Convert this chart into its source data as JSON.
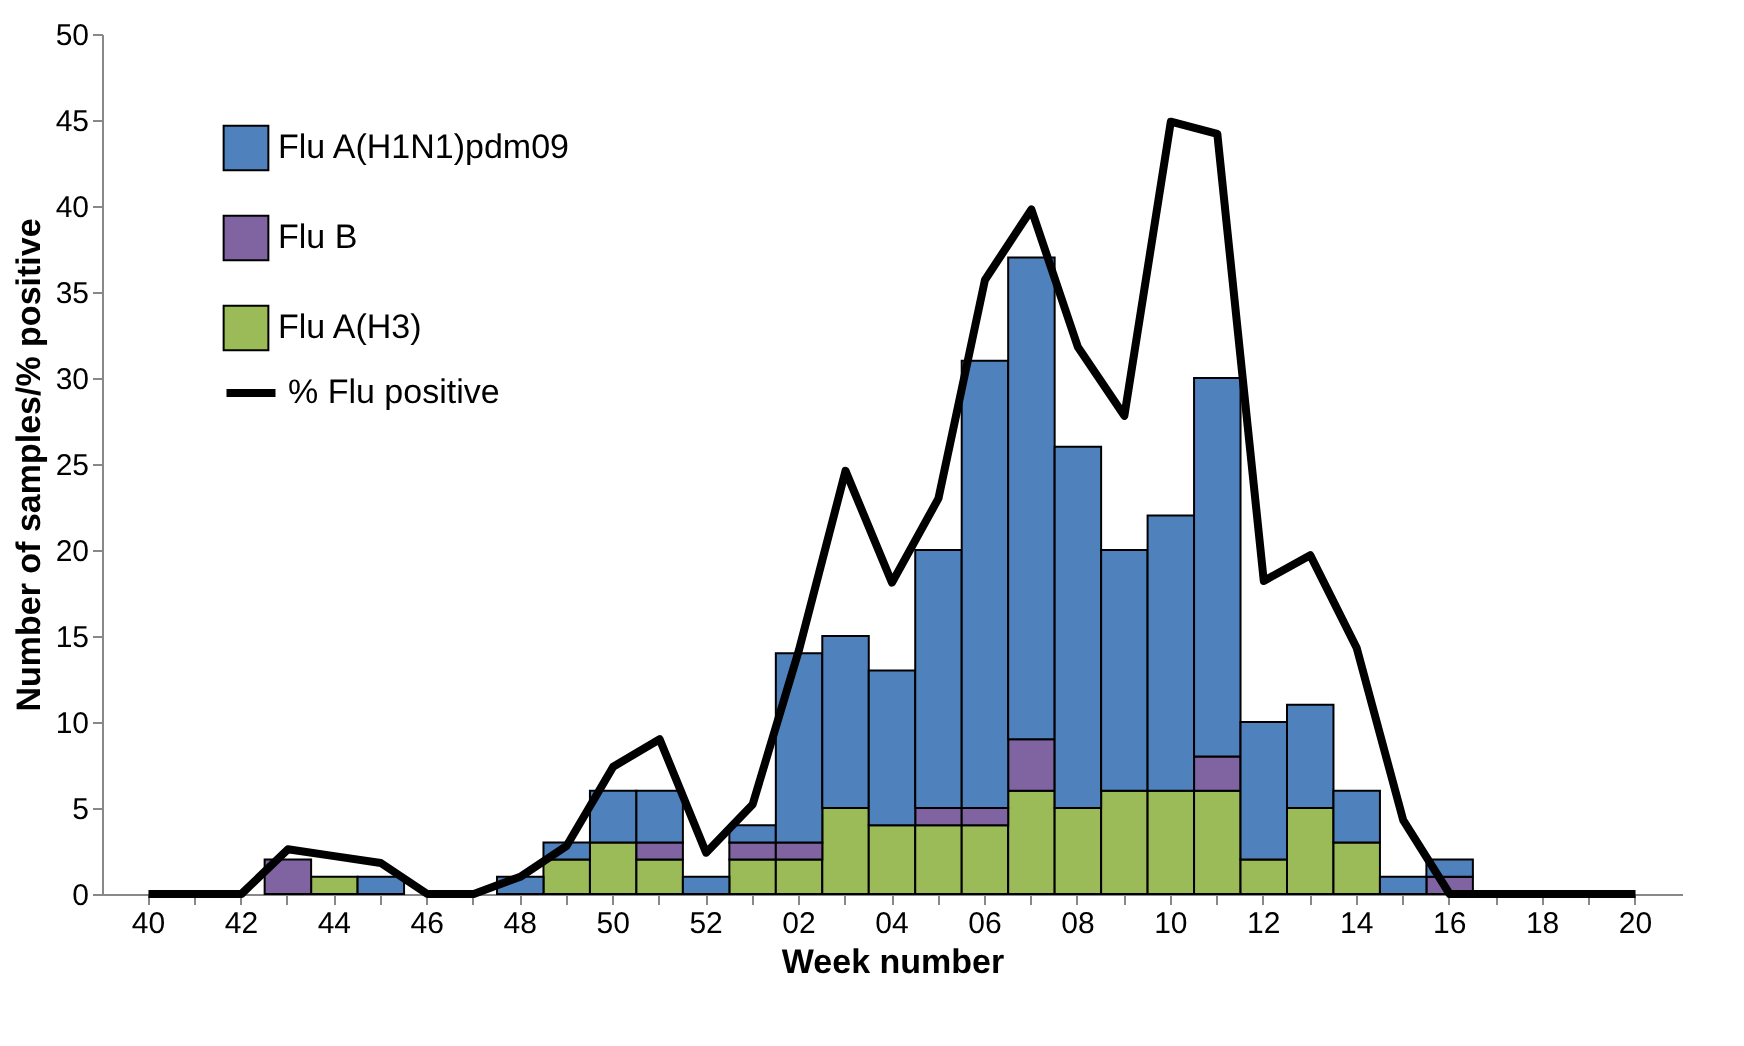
{
  "chart_data": {
    "type": "bar",
    "stacked": true,
    "xlabel": "Week number",
    "ylabel": "Number of samples/% positive",
    "categories": [
      "40",
      null,
      "42",
      null,
      "44",
      null,
      "46",
      null,
      "48",
      null,
      "50",
      null,
      "52",
      null,
      "02",
      null,
      "04",
      null,
      "06",
      null,
      "08",
      null,
      "10",
      null,
      "12",
      null,
      "14",
      null,
      "16",
      null,
      "18",
      null,
      "20"
    ],
    "series": [
      {
        "name": "Flu A(H3)",
        "color": "#9bbb59",
        "values": [
          0,
          0,
          0,
          0,
          1,
          0,
          0,
          0,
          0,
          2,
          3,
          2,
          0,
          2,
          2,
          5,
          4,
          4,
          4,
          6,
          5,
          6,
          6,
          6,
          2,
          5,
          3,
          0,
          0,
          0,
          0,
          0,
          0
        ]
      },
      {
        "name": "Flu B",
        "color": "#8064a2",
        "values": [
          0,
          0,
          0,
          2,
          0,
          0,
          0,
          0,
          0,
          0,
          0,
          1,
          0,
          1,
          1,
          0,
          0,
          1,
          1,
          3,
          0,
          0,
          0,
          2,
          0,
          0,
          0,
          0,
          1,
          0,
          0,
          0,
          0
        ]
      },
      {
        "name": "Flu A(H1N1)pdm09",
        "color": "#4f81bd",
        "values": [
          0,
          0,
          0,
          0,
          0,
          1,
          0,
          0,
          1,
          1,
          3,
          3,
          1,
          1,
          11,
          10,
          9,
          15,
          26,
          28,
          21,
          14,
          16,
          22,
          8,
          6,
          3,
          1,
          1,
          0,
          0,
          0,
          0
        ]
      },
      {
        "name": "% Flu positive",
        "type": "line",
        "color": "#000000",
        "values": [
          0,
          0,
          0,
          2.6,
          2.2,
          1.8,
          0,
          0,
          1.0,
          2.8,
          7.4,
          9.0,
          2.4,
          5.2,
          14.2,
          24.6,
          18.1,
          23.0,
          35.7,
          39.8,
          31.8,
          27.8,
          44.9,
          44.2,
          18.2,
          19.7,
          14.3,
          4.3,
          0,
          0,
          0,
          0,
          0
        ]
      }
    ],
    "ylim": [
      0,
      50
    ],
    "yticks": [
      0,
      5,
      10,
      15,
      20,
      25,
      30,
      35,
      40,
      45,
      50
    ],
    "grid": false,
    "legend": "top left",
    "marker": "none",
    "line_style": "solid"
  }
}
